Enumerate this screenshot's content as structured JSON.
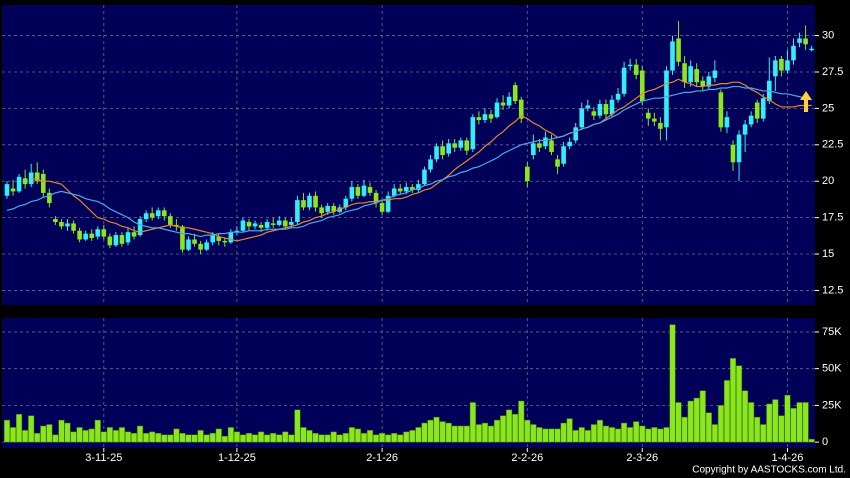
{
  "chart_data": [
    {
      "type": "candlestick",
      "up_color": "#33eef5",
      "down_color": "#8ce61e",
      "open": [
        19.0,
        19.5,
        19.3,
        20.2,
        19.8,
        20.6,
        20.5,
        19.2,
        17.4,
        17.2,
        16.9,
        17.1,
        16.6,
        16.0,
        16.4,
        16.2,
        16.7,
        16.2,
        15.6,
        16.3,
        15.8,
        16.5,
        16.3,
        17.4,
        17.8,
        17.6,
        18.0,
        17.6,
        17.0,
        16.9,
        15.3,
        16.0,
        15.7,
        15.3,
        15.8,
        16.2,
        15.9,
        15.8,
        16.5,
        16.6,
        17.2,
        16.9,
        17.0,
        16.8,
        17.1,
        17.0,
        17.3,
        17.0,
        17.2,
        18.7,
        18.2,
        19.0,
        18.2,
        17.9,
        18.3,
        17.9,
        18.2,
        18.8,
        19.6,
        19.0,
        19.6,
        19.2,
        18.5,
        17.9,
        19.0,
        19.5,
        19.3,
        19.6,
        19.4,
        19.8,
        20.8,
        21.5,
        22.4,
        21.9,
        22.6,
        22.3,
        22.8,
        22.2,
        24.4,
        24.2,
        24.6,
        24.4,
        25.4,
        25.2,
        26.6,
        25.6,
        21.0,
        21.8,
        22.6,
        22.4,
        22.8,
        21.5,
        21.2,
        22.4,
        22.8,
        23.7,
        25.0,
        24.8,
        24.5,
        25.3,
        24.6,
        25.6,
        26.0,
        27.9,
        28.0,
        27.6,
        24.7,
        24.3,
        24.0,
        23.7,
        27.6,
        29.8,
        28.1,
        26.8,
        27.7,
        26.9,
        26.5,
        27.1,
        26.1,
        23.7,
        22.5,
        21.3,
        23.2,
        23.9,
        25.4,
        24.3,
        25.5,
        27.2,
        28.4,
        27.6,
        28.3,
        29.5,
        29.8,
        29.0
      ],
      "high": [
        20.0,
        20.1,
        20.5,
        20.8,
        21.2,
        21.3,
        20.8,
        19.5,
        17.6,
        17.4,
        17.4,
        17.3,
        16.8,
        16.6,
        16.7,
        16.9,
        17.0,
        16.4,
        16.5,
        16.5,
        16.8,
        16.9,
        17.6,
        18.0,
        18.2,
        18.2,
        18.2,
        17.8,
        17.4,
        17.0,
        16.2,
        16.4,
        15.9,
        16.0,
        16.5,
        16.4,
        16.1,
        16.7,
        16.9,
        17.5,
        17.4,
        17.3,
        17.2,
        17.4,
        17.5,
        17.6,
        17.5,
        17.5,
        19.0,
        19.2,
        19.2,
        19.3,
        18.4,
        18.5,
        18.5,
        18.4,
        19.0,
        20.0,
        19.8,
        20.1,
        19.9,
        19.4,
        18.7,
        19.3,
        19.8,
        19.8,
        19.9,
        19.8,
        20.1,
        21.0,
        21.8,
        22.6,
        22.8,
        22.9,
        22.9,
        23.0,
        23.0,
        24.6,
        24.8,
        25.0,
        24.9,
        25.7,
        25.9,
        26.1,
        26.8,
        25.8,
        21.3,
        23.2,
        22.9,
        23.4,
        23.2,
        21.8,
        22.7,
        23.0,
        24.0,
        25.4,
        25.6,
        25.1,
        25.6,
        25.6,
        25.9,
        26.4,
        28.2,
        28.4,
        28.4,
        27.9,
        25.0,
        24.7,
        24.4,
        27.9,
        30.0,
        31.0,
        28.6,
        28.3,
        28.1,
        27.2,
        27.5,
        28.3,
        26.3,
        24.8,
        22.8,
        23.5,
        24.2,
        24.8,
        25.6,
        26.0,
        28.5,
        28.6,
        28.6,
        29.0,
        29.8,
        30.2,
        30.7,
        29.3
      ],
      "low": [
        18.8,
        19.0,
        19.2,
        19.5,
        19.6,
        19.8,
        18.9,
        18.2,
        17.0,
        16.7,
        16.6,
        16.4,
        15.8,
        15.9,
        15.9,
        16.0,
        16.0,
        15.4,
        15.5,
        15.5,
        15.6,
        16.0,
        16.2,
        17.2,
        17.3,
        17.4,
        17.3,
        16.8,
        16.6,
        15.1,
        15.2,
        15.5,
        15.0,
        15.2,
        15.6,
        15.6,
        15.5,
        15.7,
        16.3,
        16.5,
        16.6,
        16.7,
        16.5,
        16.6,
        16.8,
        16.9,
        16.7,
        16.8,
        17.0,
        18.0,
        18.0,
        17.9,
        17.5,
        17.7,
        17.7,
        17.8,
        18.0,
        18.6,
        18.8,
        18.9,
        19.0,
        18.2,
        17.7,
        17.8,
        18.9,
        19.1,
        19.1,
        19.2,
        19.2,
        19.7,
        20.6,
        21.3,
        21.5,
        21.7,
        22.0,
        22.1,
        21.8,
        22.0,
        23.9,
        24.0,
        24.0,
        24.3,
        24.9,
        25.0,
        25.3,
        24.0,
        19.6,
        21.5,
        22.0,
        22.2,
        21.8,
        20.5,
        21.0,
        22.2,
        22.6,
        23.5,
        24.8,
        24.2,
        24.3,
        24.3,
        24.4,
        25.4,
        25.8,
        27.6,
        27.0,
        25.2,
        23.8,
        23.8,
        22.8,
        22.8,
        27.3,
        27.9,
        26.4,
        26.5,
        26.5,
        26.2,
        26.3,
        26.8,
        23.4,
        23.3,
        20.7,
        20.0,
        22.0,
        23.7,
        24.0,
        24.1,
        25.3,
        26.2,
        27.2,
        27.4,
        28.0,
        29.2,
        29.0,
        28.9
      ],
      "close": [
        19.8,
        19.3,
        20.3,
        19.8,
        20.6,
        20.0,
        19.2,
        18.5,
        17.2,
        16.9,
        17.1,
        16.6,
        16.0,
        16.4,
        16.1,
        16.7,
        16.2,
        15.6,
        16.3,
        15.7,
        16.5,
        16.2,
        17.4,
        17.8,
        17.5,
        18.0,
        17.6,
        17.0,
        16.9,
        15.3,
        16.0,
        15.7,
        15.3,
        15.8,
        16.3,
        15.9,
        15.8,
        16.5,
        16.6,
        17.3,
        16.9,
        17.1,
        16.8,
        17.2,
        17.0,
        17.3,
        16.9,
        17.2,
        18.7,
        18.2,
        19.0,
        18.2,
        17.8,
        18.3,
        17.9,
        18.2,
        18.8,
        19.6,
        19.0,
        19.7,
        19.2,
        18.5,
        17.9,
        19.0,
        19.5,
        19.3,
        19.6,
        19.4,
        19.8,
        20.8,
        21.5,
        22.4,
        21.8,
        22.6,
        22.3,
        22.8,
        22.1,
        24.4,
        24.2,
        24.6,
        24.3,
        25.4,
        25.2,
        25.8,
        25.5,
        24.3,
        20.0,
        22.6,
        22.3,
        23.0,
        22.0,
        21.0,
        22.4,
        22.7,
        23.7,
        25.0,
        25.2,
        24.5,
        25.3,
        24.6,
        25.6,
        26.0,
        27.8,
        28.0,
        27.3,
        25.5,
        24.3,
        24.1,
        23.6,
        27.6,
        29.6,
        28.2,
        26.8,
        27.9,
        26.8,
        26.5,
        27.2,
        27.6,
        23.7,
        24.4,
        21.3,
        23.2,
        23.9,
        24.5,
        24.3,
        25.7,
        26.9,
        28.3,
        27.6,
        28.3,
        29.3,
        29.8,
        29.4,
        29.1
      ],
      "ma_lines": [
        {
          "color": "#e8862a",
          "values": [
            null,
            null,
            null,
            null,
            20.2,
            20.1,
            20.0,
            20.0,
            19.9,
            19.8,
            19.4,
            19.0,
            18.7,
            18.3,
            17.9,
            17.5,
            17.4,
            17.2,
            17.1,
            16.9,
            16.8,
            16.6,
            16.5,
            16.6,
            16.7,
            16.8,
            16.9,
            17.0,
            16.9,
            16.8,
            16.8,
            16.7,
            16.6,
            16.5,
            16.4,
            16.2,
            16.1,
            16.0,
            15.9,
            16.0,
            16.1,
            16.2,
            16.3,
            16.5,
            16.6,
            16.7,
            16.8,
            16.9,
            17.0,
            17.2,
            17.3,
            17.5,
            17.6,
            17.8,
            17.9,
            18.1,
            18.2,
            18.4,
            18.5,
            18.5,
            18.6,
            18.6,
            18.7,
            18.7,
            18.8,
            18.8,
            18.9,
            19.1,
            19.2,
            19.4,
            19.5,
            19.8,
            20.1,
            20.4,
            20.8,
            21.1,
            21.4,
            21.7,
            22.0,
            22.4,
            22.7,
            23.1,
            23.4,
            23.8,
            24.1,
            24.5,
            24.3,
            24.0,
            23.8,
            23.5,
            23.3,
            23.0,
            23.1,
            23.3,
            23.4,
            23.6,
            23.7,
            23.9,
            24.0,
            24.3,
            24.6,
            24.9,
            25.1,
            25.4,
            25.7,
            26.0,
            26.2,
            26.3,
            26.5,
            26.7,
            26.8,
            27.0,
            26.8,
            26.7,
            26.5,
            26.5,
            26.6,
            26.6,
            26.7,
            26.7,
            26.8,
            26.8,
            26.6,
            26.3,
            26.1,
            25.8,
            25.6,
            25.3,
            25.1,
            25.1,
            25.1,
            25.2,
            25.2,
            25.2
          ]
        },
        {
          "color": "#4aa8e8",
          "values": [
            18.0,
            18.1,
            18.3,
            18.4,
            18.6,
            18.7,
            18.9,
            19.0,
            19.2,
            19.3,
            19.2,
            19.1,
            19.0,
            18.8,
            18.7,
            18.6,
            18.4,
            18.1,
            17.9,
            17.7,
            17.5,
            17.2,
            17.0,
            16.9,
            16.8,
            16.8,
            16.7,
            16.6,
            16.5,
            16.4,
            16.4,
            16.3,
            16.2,
            16.3,
            16.3,
            16.4,
            16.4,
            16.5,
            16.5,
            16.5,
            16.6,
            16.6,
            16.6,
            16.7,
            16.7,
            16.7,
            16.7,
            16.8,
            16.8,
            16.9,
            17.1,
            17.2,
            17.3,
            17.5,
            17.6,
            17.7,
            17.9,
            18.0,
            18.1,
            18.3,
            18.4,
            18.5,
            18.7,
            18.8,
            19.0,
            19.1,
            19.2,
            19.4,
            19.5,
            19.7,
            19.8,
            20.0,
            20.1,
            20.3,
            20.4,
            20.6,
            20.7,
            20.9,
            21.0,
            21.2,
            21.4,
            21.6,
            21.9,
            22.1,
            22.3,
            22.5,
            22.6,
            22.7,
            22.8,
            22.8,
            22.9,
            23.0,
            23.1,
            23.3,
            23.4,
            23.6,
            23.7,
            23.9,
            24.0,
            24.2,
            24.4,
            24.6,
            24.9,
            25.1,
            25.3,
            25.5,
            25.6,
            25.7,
            25.7,
            25.8,
            25.9,
            26.0,
            26.1,
            26.1,
            26.2,
            26.2,
            26.3,
            26.3,
            26.4,
            26.4,
            26.5,
            26.5,
            26.4,
            26.4,
            26.3,
            26.2,
            26.2,
            26.1,
            26.0,
            26.0,
            25.9,
            25.8,
            25.7,
            25.6
          ]
        }
      ],
      "ylim": [
        11.5,
        32.1
      ],
      "yticks": [
        12.5,
        15,
        17.5,
        20,
        22.5,
        25,
        27.5,
        30
      ],
      "grid": true
    },
    {
      "type": "bar",
      "color": "#8ce61e",
      "categories": [
        null,
        null,
        null,
        null,
        null,
        null,
        null,
        null,
        null,
        null,
        null,
        null,
        null,
        null,
        null,
        null,
        "3-11-25",
        null,
        null,
        null,
        null,
        null,
        null,
        null,
        null,
        null,
        null,
        null,
        null,
        null,
        null,
        null,
        null,
        null,
        null,
        null,
        null,
        null,
        "1-12-25",
        null,
        null,
        null,
        null,
        null,
        null,
        null,
        null,
        null,
        null,
        null,
        null,
        null,
        null,
        null,
        null,
        null,
        null,
        null,
        null,
        null,
        null,
        null,
        "2-1-26",
        null,
        null,
        null,
        null,
        null,
        null,
        null,
        null,
        null,
        null,
        null,
        null,
        null,
        null,
        null,
        null,
        null,
        null,
        null,
        null,
        null,
        null,
        null,
        "2-2-26",
        null,
        null,
        null,
        null,
        null,
        null,
        null,
        null,
        null,
        null,
        null,
        null,
        null,
        null,
        null,
        null,
        null,
        null,
        "2-3-26",
        null,
        null,
        null,
        null,
        null,
        null,
        null,
        null,
        null,
        null,
        null,
        null,
        null,
        null,
        null,
        null,
        null,
        null,
        null,
        null,
        null,
        null,
        null,
        "1-4-26",
        null,
        null,
        null,
        null
      ],
      "values": [
        15000,
        10000,
        19000,
        8000,
        18000,
        6000,
        11000,
        12000,
        5000,
        15000,
        13000,
        7000,
        10000,
        8000,
        9000,
        15000,
        7000,
        10000,
        8000,
        10000,
        7000,
        6000,
        11000,
        6000,
        7000,
        6000,
        5000,
        5000,
        9000,
        6000,
        5000,
        5000,
        8000,
        5000,
        6000,
        9000,
        4000,
        10000,
        7000,
        5000,
        6000,
        5000,
        7000,
        5000,
        6000,
        5000,
        7000,
        5000,
        22000,
        10000,
        8000,
        6000,
        5000,
        5000,
        7000,
        5000,
        6000,
        10000,
        9000,
        6000,
        8000,
        5000,
        6000,
        5000,
        6000,
        5000,
        7000,
        8000,
        10000,
        13000,
        15000,
        17000,
        14000,
        13000,
        11000,
        11000,
        11000,
        27000,
        12000,
        13000,
        11000,
        15000,
        18000,
        22000,
        19000,
        28000,
        15000,
        12000,
        10000,
        9000,
        9000,
        9000,
        13000,
        16000,
        8000,
        10000,
        8000,
        12000,
        15000,
        11000,
        10000,
        9000,
        13000,
        10000,
        14000,
        11000,
        9000,
        10000,
        9000,
        10000,
        80000,
        27000,
        17000,
        28000,
        30000,
        35000,
        20000,
        12000,
        25000,
        42000,
        57000,
        52000,
        35000,
        27000,
        17000,
        12000,
        26000,
        29000,
        18000,
        32000,
        23000,
        27000,
        27000,
        2000
      ],
      "ylim": [
        -4000,
        84500
      ],
      "yticks": [
        0,
        {
          "value": 25000,
          "label": "25K"
        },
        {
          "value": 50000,
          "label": "50K"
        },
        {
          "value": 75000,
          "label": "75K"
        }
      ],
      "grid": true
    }
  ],
  "copyright": "Copyright by AASTOCKS.com Ltd."
}
